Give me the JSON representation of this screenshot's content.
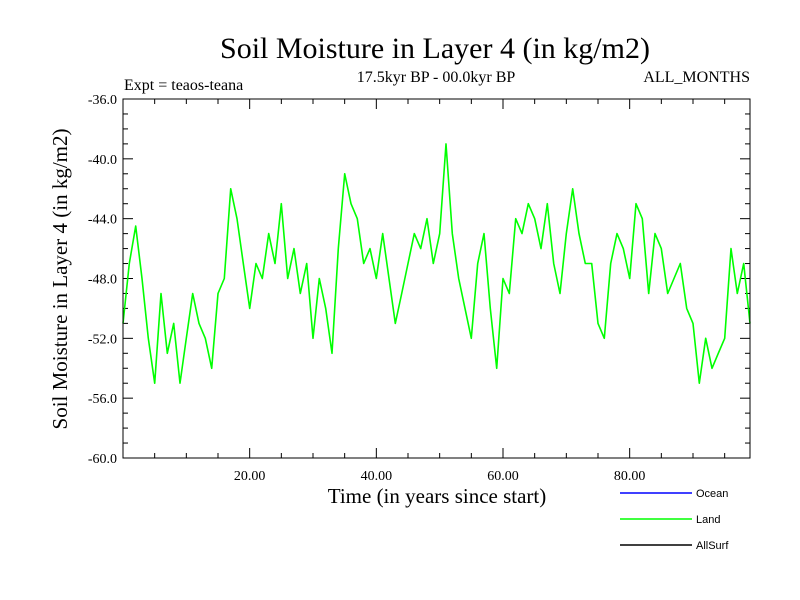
{
  "chart_data": {
    "type": "line",
    "title": "Soil Moisture in Layer 4 (in kg/m2)",
    "subtitle": "17.5kyr BP - 00.0kyr BP",
    "left_note": "Expt = teaos-teana",
    "right_note": "ALL_MONTHS",
    "xlabel": "Time (in years since start)",
    "ylabel": "Soil Moisture in Layer 4 (in kg/m2)",
    "xlim": [
      0,
      99
    ],
    "ylim": [
      -60,
      -36
    ],
    "x_ticks": [
      20,
      40,
      60,
      80
    ],
    "x_tick_labels": [
      "20.00",
      "40.00",
      "60.00",
      "80.00"
    ],
    "y_ticks": [
      -60,
      -56,
      -52,
      -48,
      -44,
      -40,
      -36
    ],
    "y_tick_labels": [
      "-60.0",
      "-56.0",
      "-52.0",
      "-48.0",
      "-44.0",
      "-40.0",
      "-36.0"
    ],
    "legend": [
      {
        "name": "Ocean",
        "color": "#0000ff"
      },
      {
        "name": "Land",
        "color": "#00ff00"
      },
      {
        "name": "AllSurf",
        "color": "#000000"
      }
    ],
    "series": [
      {
        "name": "Land",
        "color": "#00ff00",
        "x": [
          0,
          1,
          2,
          3,
          4,
          5,
          6,
          7,
          8,
          9,
          10,
          11,
          12,
          13,
          14,
          15,
          16,
          17,
          18,
          19,
          20,
          21,
          22,
          23,
          24,
          25,
          26,
          27,
          28,
          29,
          30,
          31,
          32,
          33,
          34,
          35,
          36,
          37,
          38,
          39,
          40,
          41,
          42,
          43,
          44,
          45,
          46,
          47,
          48,
          49,
          50,
          51,
          52,
          53,
          54,
          55,
          56,
          57,
          58,
          59,
          60,
          61,
          62,
          63,
          64,
          65,
          66,
          67,
          68,
          69,
          70,
          71,
          72,
          73,
          74,
          75,
          76,
          77,
          78,
          79,
          80,
          81,
          82,
          83,
          84,
          85,
          86,
          87,
          88,
          89,
          90,
          91,
          92,
          93,
          94,
          95,
          96,
          97,
          98,
          99
        ],
        "values": [
          -51,
          -47,
          -44.5,
          -48,
          -52,
          -55,
          -49,
          -53,
          -51,
          -55,
          -52,
          -49,
          -51,
          -52,
          -54,
          -49,
          -48,
          -42,
          -44,
          -47,
          -50,
          -47,
          -48,
          -45,
          -47,
          -43,
          -48,
          -46,
          -49,
          -47,
          -52,
          -48,
          -50,
          -53,
          -46,
          -41,
          -43,
          -44,
          -47,
          -46,
          -48,
          -45,
          -48,
          -51,
          -49,
          -47,
          -45,
          -46,
          -44,
          -47,
          -45,
          -39,
          -45,
          -48,
          -50,
          -52,
          -47,
          -45,
          -50,
          -54,
          -48,
          -49,
          -44,
          -45,
          -43,
          -44,
          -46,
          -43,
          -47,
          -49,
          -45,
          -42,
          -45,
          -47,
          -47,
          -51,
          -52,
          -47,
          -45,
          -46,
          -48,
          -43,
          -44,
          -49,
          -45,
          -46,
          -49,
          -48,
          -47,
          -50,
          -51,
          -55,
          -52,
          -54,
          -53,
          -52,
          -46,
          -49,
          -47,
          -51
        ]
      }
    ]
  }
}
